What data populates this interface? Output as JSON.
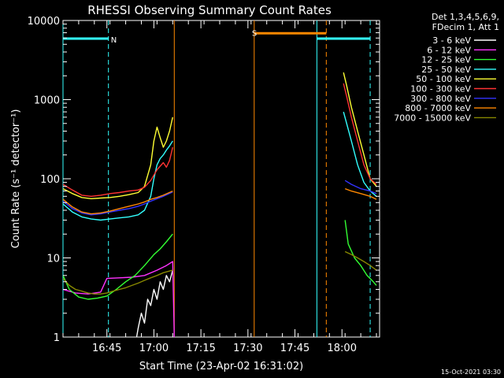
{
  "chart_data": {
    "type": "line",
    "title": "RHESSI Observing Summary Count Rates",
    "xlabel": "Start Time (23-Apr-02 16:31:02)",
    "ylabel": "Count Rate (s⁻¹ detector⁻¹)",
    "yscale": "log",
    "ylim": [
      1,
      10000
    ],
    "xlim_minutes": [
      0,
      101
    ],
    "x_ticks": [
      {
        "label": "16:45",
        "minutes": 14
      },
      {
        "label": "17:00",
        "minutes": 29
      },
      {
        "label": "17:15",
        "minutes": 44
      },
      {
        "label": "17:30",
        "minutes": 59
      },
      {
        "label": "17:45",
        "minutes": 74
      },
      {
        "label": "18:00",
        "minutes": 89
      }
    ],
    "y_ticks": [
      {
        "label": "1",
        "value": 1
      },
      {
        "label": "10",
        "value": 10
      },
      {
        "label": "100",
        "value": 100
      },
      {
        "label": "1000",
        "value": 1000
      },
      {
        "label": "10000",
        "value": 10000
      }
    ],
    "legend": {
      "header": [
        "Det 1,3,4,5,6,9,",
        "FDecim 1, Att 1"
      ],
      "placement": "right"
    },
    "series": [
      {
        "name": "3 - 6 keV",
        "color": "#ffffff",
        "segments": [
          [
            [
              23.5,
              1
            ],
            [
              24,
              1.3
            ],
            [
              25,
              2
            ],
            [
              26,
              1.5
            ],
            [
              27,
              3
            ],
            [
              28,
              2.5
            ],
            [
              29,
              4
            ],
            [
              30,
              3
            ],
            [
              31,
              5
            ],
            [
              32,
              4
            ],
            [
              33,
              6
            ],
            [
              34,
              5
            ],
            [
              35,
              7
            ]
          ]
        ]
      },
      {
        "name": "6 - 12 keV",
        "color": "#ff33ff",
        "segments": [
          [
            [
              0,
              4
            ],
            [
              4,
              3.6
            ],
            [
              8,
              3.5
            ],
            [
              12,
              3.7
            ],
            [
              14,
              5.5
            ],
            [
              18,
              5.6
            ],
            [
              22,
              5.7
            ],
            [
              26,
              6
            ],
            [
              30,
              7
            ],
            [
              33,
              8
            ],
            [
              35,
              9
            ],
            [
              35.5,
              1
            ]
          ]
        ]
      },
      {
        "name": "12 - 25 keV",
        "color": "#33ff33",
        "segments": [
          [
            [
              0,
              6
            ],
            [
              2,
              4
            ],
            [
              5,
              3.2
            ],
            [
              8,
              3
            ],
            [
              11,
              3.1
            ],
            [
              14,
              3.3
            ],
            [
              17,
              4
            ],
            [
              20,
              5
            ],
            [
              23,
              6
            ],
            [
              26,
              8
            ],
            [
              29,
              11
            ],
            [
              31,
              13
            ],
            [
              33,
              16
            ],
            [
              35,
              20
            ]
          ],
          [
            [
              90,
              30
            ],
            [
              91,
              15
            ],
            [
              93,
              10
            ],
            [
              95,
              8
            ],
            [
              97,
              6
            ],
            [
              99,
              5
            ],
            [
              100,
              4.5
            ]
          ]
        ]
      },
      {
        "name": "25 - 50 keV",
        "color": "#33ffff",
        "segments": [
          [
            [
              0,
              48
            ],
            [
              3,
              38
            ],
            [
              6,
              33
            ],
            [
              9,
              31
            ],
            [
              12,
              30
            ],
            [
              15,
              31
            ],
            [
              18,
              32
            ],
            [
              21,
              33
            ],
            [
              24,
              35
            ],
            [
              26,
              40
            ],
            [
              28,
              60
            ],
            [
              29,
              100
            ],
            [
              30,
              150
            ],
            [
              31,
              180
            ],
            [
              32,
              200
            ],
            [
              33,
              230
            ],
            [
              34,
              260
            ],
            [
              35,
              300
            ]
          ],
          [
            [
              89.5,
              700
            ],
            [
              90.5,
              500
            ],
            [
              92,
              300
            ],
            [
              94,
              150
            ],
            [
              96,
              90
            ],
            [
              98,
              70
            ],
            [
              100,
              60
            ]
          ]
        ]
      },
      {
        "name": "50 - 100 keV",
        "color": "#ffff33",
        "segments": [
          [
            [
              0,
              75
            ],
            [
              3,
              65
            ],
            [
              6,
              58
            ],
            [
              9,
              56
            ],
            [
              12,
              57
            ],
            [
              15,
              58
            ],
            [
              18,
              60
            ],
            [
              21,
              63
            ],
            [
              24,
              67
            ],
            [
              26,
              80
            ],
            [
              28,
              150
            ],
            [
              29,
              300
            ],
            [
              30,
              450
            ],
            [
              31,
              330
            ],
            [
              32,
              250
            ],
            [
              33,
              300
            ],
            [
              34,
              400
            ],
            [
              35,
              600
            ]
          ],
          [
            [
              89.5,
              2200
            ],
            [
              90.5,
              1500
            ],
            [
              92,
              800
            ],
            [
              94,
              400
            ],
            [
              96,
              200
            ],
            [
              98,
              100
            ],
            [
              100,
              80
            ]
          ]
        ]
      },
      {
        "name": "100 - 300 keV",
        "color": "#ff3333",
        "segments": [
          [
            [
              0,
              85
            ],
            [
              3,
              72
            ],
            [
              6,
              62
            ],
            [
              9,
              60
            ],
            [
              12,
              62
            ],
            [
              15,
              65
            ],
            [
              18,
              67
            ],
            [
              21,
              70
            ],
            [
              24,
              72
            ],
            [
              26,
              78
            ],
            [
              28,
              95
            ],
            [
              30,
              130
            ],
            [
              32,
              160
            ],
            [
              33,
              140
            ],
            [
              34,
              170
            ],
            [
              35,
              250
            ]
          ],
          [
            [
              89.5,
              1600
            ],
            [
              90.5,
              1100
            ],
            [
              92,
              600
            ],
            [
              94,
              300
            ],
            [
              96,
              150
            ],
            [
              98,
              100
            ],
            [
              100,
              85
            ]
          ]
        ]
      },
      {
        "name": "300 - 800 keV",
        "color": "#3333ff",
        "segments": [
          [
            [
              0,
              52
            ],
            [
              3,
              42
            ],
            [
              6,
              37
            ],
            [
              9,
              35
            ],
            [
              12,
              36
            ],
            [
              15,
              38
            ],
            [
              18,
              40
            ],
            [
              21,
              42
            ],
            [
              24,
              45
            ],
            [
              26,
              48
            ],
            [
              28,
              52
            ],
            [
              30,
              56
            ],
            [
              32,
              60
            ],
            [
              35,
              68
            ]
          ],
          [
            [
              90,
              95
            ],
            [
              92,
              85
            ],
            [
              95,
              75
            ],
            [
              98,
              70
            ],
            [
              100,
              65
            ]
          ]
        ]
      },
      {
        "name": "800 - 7000 keV",
        "color": "#ff8800",
        "segments": [
          [
            [
              0,
              55
            ],
            [
              3,
              44
            ],
            [
              6,
              38
            ],
            [
              9,
              36
            ],
            [
              12,
              37
            ],
            [
              15,
              39
            ],
            [
              18,
              42
            ],
            [
              21,
              45
            ],
            [
              24,
              48
            ],
            [
              26,
              51
            ],
            [
              28,
              55
            ],
            [
              30,
              58
            ],
            [
              32,
              62
            ],
            [
              35,
              70
            ]
          ],
          [
            [
              90,
              75
            ],
            [
              92,
              70
            ],
            [
              95,
              65
            ],
            [
              98,
              60
            ],
            [
              100,
              55
            ]
          ]
        ]
      },
      {
        "name": "7000 - 15000 keV",
        "color": "#888800",
        "segments": [
          [
            [
              0,
              5.5
            ],
            [
              2,
              4.5
            ],
            [
              4,
              4
            ],
            [
              6,
              3.8
            ],
            [
              8,
              3.6
            ],
            [
              10,
              3.5
            ],
            [
              12,
              3.5
            ],
            [
              14,
              3.6
            ],
            [
              16,
              3.8
            ],
            [
              18,
              4
            ],
            [
              20,
              4.2
            ],
            [
              22,
              4.5
            ],
            [
              24,
              4.8
            ],
            [
              26,
              5.2
            ],
            [
              28,
              5.6
            ],
            [
              30,
              6
            ],
            [
              32,
              6.5
            ],
            [
              35,
              7
            ]
          ],
          [
            [
              90,
              12
            ],
            [
              92,
              11
            ],
            [
              94,
              10
            ],
            [
              96,
              9
            ],
            [
              98,
              8
            ],
            [
              100,
              7
            ]
          ]
        ]
      }
    ],
    "annotations": [
      {
        "label": "N",
        "color": "#33ffff",
        "x": 14.5,
        "y": 5800,
        "x_from": 0,
        "x_to": 14.5,
        "y_lim": [
          5800,
          6000
        ]
      },
      {
        "label": "S",
        "color": "#ff8800",
        "x": 59.5,
        "y": 7000,
        "x_from": 61,
        "x_to": 84,
        "y_lim": [
          6800,
          7000
        ]
      },
      {
        "label": "",
        "color": "#33ffff",
        "x_from": 81,
        "x_to": 98,
        "y_lim": [
          5800,
          6000
        ]
      }
    ],
    "vlines": [
      {
        "x": 0,
        "color": "#33ffff",
        "style": "solid"
      },
      {
        "x": 14.5,
        "color": "#33ffff",
        "style": "dashed"
      },
      {
        "x": 35.5,
        "color": "#ff8800",
        "style": "solid"
      },
      {
        "x": 61,
        "color": "#ff8800",
        "style": "solid"
      },
      {
        "x": 81,
        "color": "#33ffff",
        "style": "solid"
      },
      {
        "x": 84,
        "color": "#ff8800",
        "style": "dashed"
      },
      {
        "x": 98,
        "color": "#33ffff",
        "style": "dashed"
      }
    ]
  },
  "footer": {
    "timestamp": "15-Oct-2021 03:30"
  }
}
